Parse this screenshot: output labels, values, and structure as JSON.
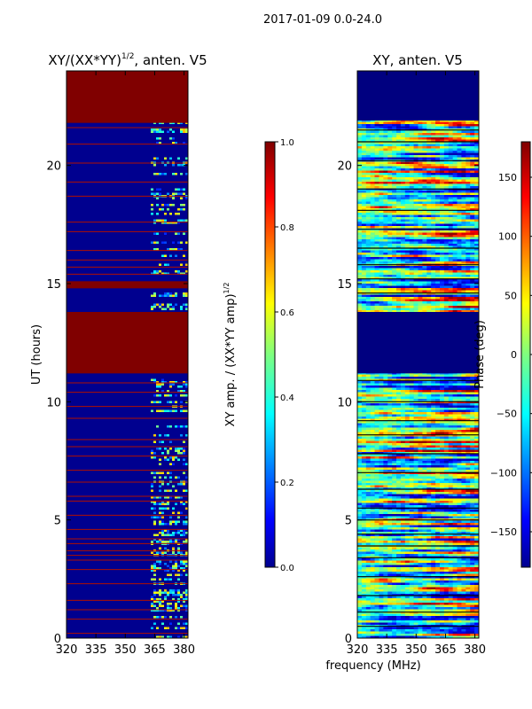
{
  "figure_title": "2017-01-09 0.0-24.0",
  "x_label": "frequency (MHz)",
  "colors": {
    "background": "#ffffff",
    "axis": "#000000",
    "jet_dark_red": "#800000",
    "jet_dark_blue": "#00008f"
  },
  "chart_data": [
    {
      "type": "heatmap",
      "title_main": "XY/(XX*YY)",
      "title_exp": "1/2",
      "title_suffix": ", anten. V5",
      "ylabel": "UT (hours)",
      "xlim": [
        320,
        382
      ],
      "ylim": [
        0,
        24
      ],
      "x_ticks": [
        "320",
        "335",
        "350",
        "365",
        "380"
      ],
      "x_tick_values": [
        320,
        335,
        350,
        365,
        380
      ],
      "y_ticks": [
        "0",
        "5",
        "10",
        "15",
        "20"
      ],
      "y_tick_values": [
        0,
        5,
        10,
        15,
        20
      ],
      "colorbar": {
        "label_main": "XY amp. / (XX*YY amp)",
        "label_exp": "1/2",
        "range": [
          0,
          1
        ],
        "ticks": [
          "0.0",
          "0.2",
          "0.4",
          "0.6",
          "0.8",
          "1.0"
        ],
        "tick_values": [
          0.0,
          0.2,
          0.4,
          0.6,
          0.8,
          1.0
        ]
      },
      "blocks": [
        {
          "from": 21.8,
          "to": 24.0,
          "value": 1.0
        },
        {
          "from": 11.2,
          "to": 13.8,
          "value": 1.0
        },
        {
          "from": 14.8,
          "to": 15.1,
          "value": 1.0
        }
      ],
      "flag_lines": [
        0.2,
        0.8,
        1.2,
        1.6,
        2.3,
        2.9,
        3.3,
        3.5,
        3.7,
        4.0,
        4.2,
        4.6,
        5.2,
        5.8,
        6.0,
        6.6,
        7.1,
        7.7,
        8.1,
        8.4,
        9.3,
        9.8,
        10.4,
        10.8,
        15.4,
        15.7,
        16.0,
        16.4,
        17.2,
        17.6,
        18.7,
        19.3,
        20.1,
        20.9,
        21.6
      ],
      "active_freq_range": [
        363,
        382
      ]
    },
    {
      "type": "heatmap",
      "title": "XY, anten. V5",
      "ylabel": "",
      "xlim": [
        320,
        382
      ],
      "ylim": [
        0,
        24
      ],
      "x_ticks": [
        "320",
        "335",
        "350",
        "365",
        "380"
      ],
      "x_tick_values": [
        320,
        335,
        350,
        365,
        380
      ],
      "y_ticks": [
        "0",
        "5",
        "10",
        "15",
        "20"
      ],
      "y_tick_values": [
        0,
        5,
        10,
        15,
        20
      ],
      "colorbar": {
        "label": "Phase (deg)",
        "range": [
          -180,
          180
        ],
        "ticks": [
          "−150",
          "−100",
          "−50",
          "0",
          "50",
          "100",
          "150"
        ],
        "tick_values": [
          -150,
          -100,
          -50,
          0,
          50,
          100,
          150
        ]
      },
      "blocks": [
        {
          "from": 21.9,
          "to": 24.0,
          "value": -180
        },
        {
          "from": 11.2,
          "to": 13.8,
          "value": -180
        }
      ],
      "flag_lines": [
        0.5,
        1.1,
        1.8,
        2.6,
        3.4,
        3.9,
        4.4,
        5.0,
        5.5,
        6.3,
        7.0,
        7.8,
        8.6,
        9.2,
        10.0,
        10.9,
        14.6,
        15.2,
        15.8,
        16.5,
        17.3,
        18.1,
        19.0,
        20.2,
        21.0,
        21.5
      ]
    }
  ]
}
